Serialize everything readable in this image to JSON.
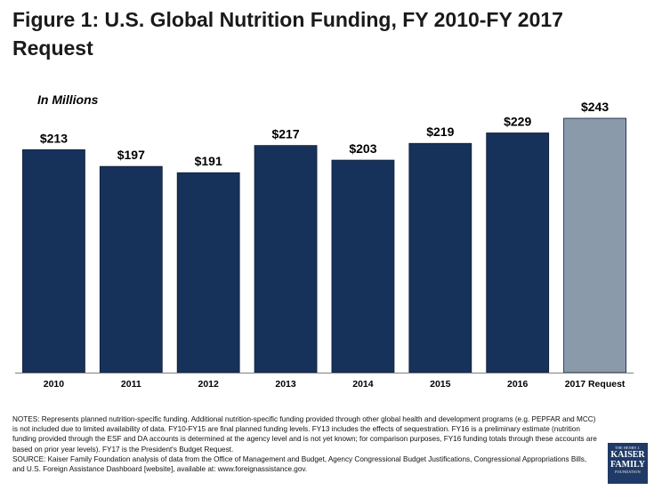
{
  "chart_data": {
    "type": "bar",
    "title": "Figure 1: U.S. Global Nutrition Funding, FY 2010-FY 2017 Request",
    "subtitle": "In Millions",
    "categories": [
      "2010",
      "2011",
      "2012",
      "2013",
      "2014",
      "2015",
      "2016",
      "2017 Request"
    ],
    "values": [
      213,
      197,
      191,
      217,
      203,
      219,
      229,
      243
    ],
    "value_labels": [
      "$213",
      "$197",
      "$191",
      "$217",
      "$203",
      "$219",
      "$229",
      "$243"
    ],
    "highlight": [
      false,
      false,
      false,
      false,
      false,
      false,
      false,
      true
    ],
    "ylim": [
      0,
      243
    ],
    "xlabel": "",
    "ylabel": "",
    "colors": {
      "bar": "#17325a",
      "highlight": "#8a9aab",
      "axis": "#808080"
    }
  },
  "notes": [
    "NOTES: Represents planned nutrition-specific funding. Additional nutrition-specific funding provided through other global health and development programs (e.g. PEPFAR and MCC) is not included due to limited availability of data. FY10-FY15 are final planned funding levels. FY13 includes the effects of sequestration. FY16 is a preliminary estimate (nutrition funding provided through the ESF and DA accounts is determined at the agency level and is not yet known; for comparison purposes, FY16 funding totals through these accounts are based on prior year levels). FY17 is the President's Budget Request.",
    "SOURCE: Kaiser Family Foundation analysis of data from the Office of Management and Budget, Agency Congressional Budget Justifications, Congressional Appropriations Bills, and U.S. Foreign Assistance Dashboard [website], available at: www.foreignassistance.gov."
  ],
  "logo": {
    "top": "THE HENRY J.",
    "line1": "KAISER",
    "line2": "FAMILY",
    "bottom": "FOUNDATION"
  }
}
